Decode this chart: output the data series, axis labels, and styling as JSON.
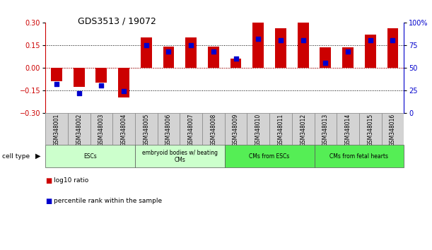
{
  "title": "GDS3513 / 19072",
  "samples": [
    "GSM348001",
    "GSM348002",
    "GSM348003",
    "GSM348004",
    "GSM348005",
    "GSM348006",
    "GSM348007",
    "GSM348008",
    "GSM348009",
    "GSM348010",
    "GSM348011",
    "GSM348012",
    "GSM348013",
    "GSM348014",
    "GSM348015",
    "GSM348016"
  ],
  "log10_ratio": [
    -0.09,
    -0.13,
    -0.1,
    -0.2,
    0.2,
    0.14,
    0.2,
    0.14,
    0.06,
    0.3,
    0.26,
    0.3,
    0.135,
    0.135,
    0.22,
    0.26
  ],
  "percentile_rank": [
    32,
    22,
    30,
    24,
    75,
    68,
    75,
    68,
    60,
    82,
    80,
    80,
    55,
    68,
    80,
    80
  ],
  "cell_type_groups": [
    {
      "label": "ESCs",
      "start": 0,
      "end": 3,
      "color": "#ccffcc"
    },
    {
      "label": "embryoid bodies w/ beating\nCMs",
      "start": 4,
      "end": 7,
      "color": "#ccffcc"
    },
    {
      "label": "CMs from ESCs",
      "start": 8,
      "end": 11,
      "color": "#55ee55"
    },
    {
      "label": "CMs from fetal hearts",
      "start": 12,
      "end": 15,
      "color": "#55ee55"
    }
  ],
  "ylim_left": [
    -0.3,
    0.3
  ],
  "ylim_right": [
    0,
    100
  ],
  "yticks_left": [
    -0.3,
    -0.15,
    0,
    0.15,
    0.3
  ],
  "yticks_right": [
    0,
    25,
    50,
    75,
    100
  ],
  "bar_color": "#cc0000",
  "dot_color": "#0000cc",
  "background_color": "#ffffff",
  "tick_label_color_left": "#cc0000",
  "tick_label_color_right": "#0000cc",
  "bar_width": 0.5,
  "sample_bg": "#d3d3d3",
  "hline_color": "#000000",
  "hline_zero_color": "#cc0000"
}
